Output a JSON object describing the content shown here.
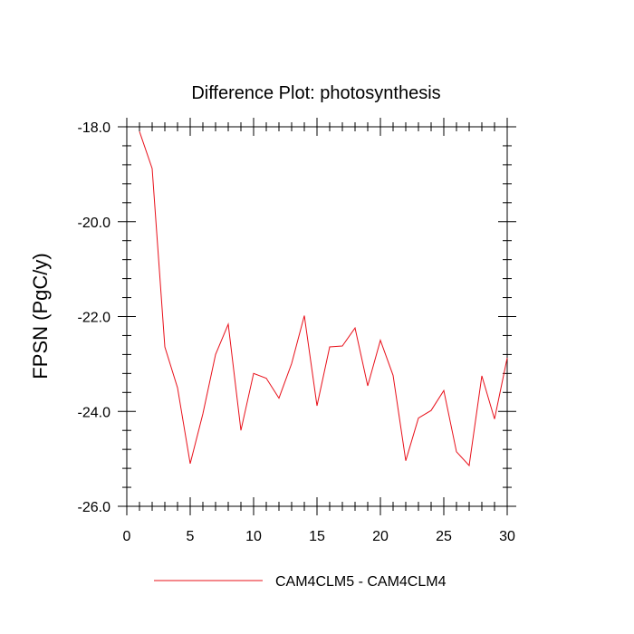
{
  "chart_data": {
    "type": "line",
    "title": "Difference Plot: photosynthesis",
    "xlabel": "",
    "ylabel": "FPSN  (PgC/y)",
    "xlim": [
      0,
      30
    ],
    "ylim": [
      -26,
      -18
    ],
    "x_ticks": [
      0,
      5,
      10,
      15,
      20,
      25,
      30
    ],
    "y_ticks": [
      -26,
      -24,
      -22,
      -20,
      -18
    ],
    "x_tick_labels": [
      "0",
      "5",
      "10",
      "15",
      "20",
      "25",
      "30"
    ],
    "y_tick_labels": [
      "-26.0",
      "-24.0",
      "-22.0",
      "-20.0",
      "-18.0"
    ],
    "grid": false,
    "legend_position": "bottom",
    "series": [
      {
        "name": "CAM4CLM5 - CAM4CLM4",
        "color": "#e8101a",
        "x": [
          1,
          2,
          3,
          4,
          5,
          6,
          7,
          8,
          9,
          10,
          11,
          12,
          13,
          14,
          15,
          16,
          17,
          18,
          19,
          20,
          21,
          22,
          23,
          24,
          25,
          26,
          27,
          28,
          29,
          30
        ],
        "values": [
          -18.1,
          -18.88,
          -22.64,
          -23.5,
          -25.1,
          -24.05,
          -22.8,
          -22.16,
          -24.4,
          -23.2,
          -23.3,
          -23.72,
          -22.99,
          -21.98,
          -23.88,
          -22.64,
          -22.62,
          -22.24,
          -23.46,
          -22.5,
          -23.24,
          -25.04,
          -24.14,
          -23.98,
          -23.56,
          -24.85,
          -25.14,
          -23.25,
          -24.16,
          -22.87
        ]
      }
    ]
  }
}
